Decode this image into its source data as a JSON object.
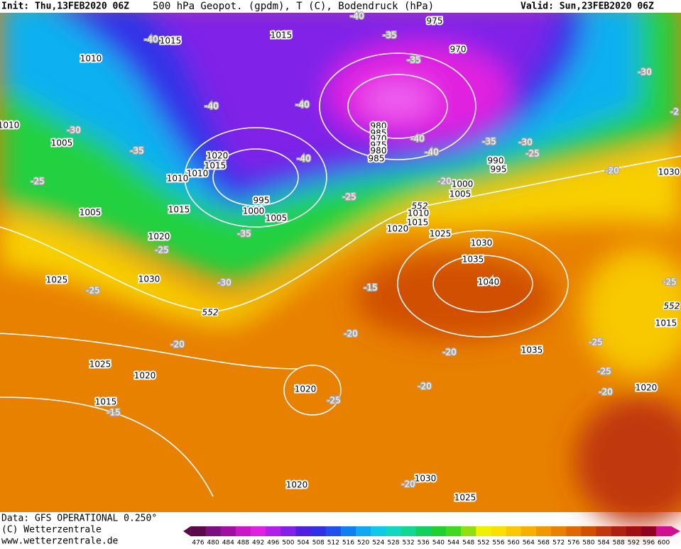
{
  "header": {
    "init": "Init: Thu,13FEB2020 06Z",
    "title": "500 hPa Geopot. (gpdm), T (C), Bodendruck (hPa)",
    "valid": "Valid: Sun,23FEB2020 06Z"
  },
  "footer": {
    "data": "Data: GFS OPERATIONAL 0.250°",
    "copyright": "(C) Wetterzentrale",
    "url": "www.wetterzentrale.de"
  },
  "legend": {
    "levels": [
      476,
      480,
      484,
      488,
      492,
      496,
      500,
      504,
      508,
      512,
      516,
      520,
      524,
      528,
      532,
      536,
      540,
      544,
      548,
      552,
      556,
      560,
      564,
      568,
      572,
      576,
      580,
      584,
      588,
      592,
      596,
      600
    ],
    "colors": [
      "#5a0a4a",
      "#7a1080",
      "#a010a0",
      "#c818c8",
      "#e020e0",
      "#b020e8",
      "#8020e8",
      "#5020e0",
      "#3030e8",
      "#2050f0",
      "#1080f0",
      "#10a8f0",
      "#10c8e8",
      "#10d8c0",
      "#10d890",
      "#10d060",
      "#20d030",
      "#40d820",
      "#90e010",
      "#f0f000",
      "#f8e000",
      "#f8c800",
      "#f8b000",
      "#f09800",
      "#e88000",
      "#e06800",
      "#d05000",
      "#c03810",
      "#b02010",
      "#a01010",
      "#900020",
      "#d01090"
    ]
  },
  "map": {
    "isobar_labels": [
      "1015",
      "1010",
      "1015",
      "975",
      "970",
      "1010",
      "1005",
      "980",
      "985",
      "970",
      "975",
      "980",
      "985",
      "1020",
      "1015",
      "1010",
      "1010",
      "990",
      "995",
      "1000",
      "1005",
      "1030",
      "995",
      "1000",
      "1005",
      "1005",
      "1015",
      "1010",
      "1015",
      "1020",
      "1025",
      "1020",
      "1030",
      "1035",
      "1025",
      "1030",
      "1040",
      "1015",
      "1035",
      "1025",
      "1020",
      "1020",
      "1020",
      "1015",
      "1030",
      "1020",
      "1025"
    ],
    "temperature_labels": [
      "-40",
      "-40",
      "-35",
      "-35",
      "-30",
      "-40",
      "-40",
      "-30",
      "-35",
      "-40",
      "-40",
      "-35",
      "-30",
      "-25",
      "-40",
      "-25",
      "-20",
      "-25",
      "-20",
      "-35",
      "-25",
      "-30",
      "-25",
      "-15",
      "-20",
      "-20",
      "-20",
      "-25",
      "-25",
      "-20",
      "-20",
      "-25",
      "-15",
      "-20",
      "-25",
      "-2"
    ],
    "height_labels": [
      "552",
      "552",
      "552"
    ]
  }
}
